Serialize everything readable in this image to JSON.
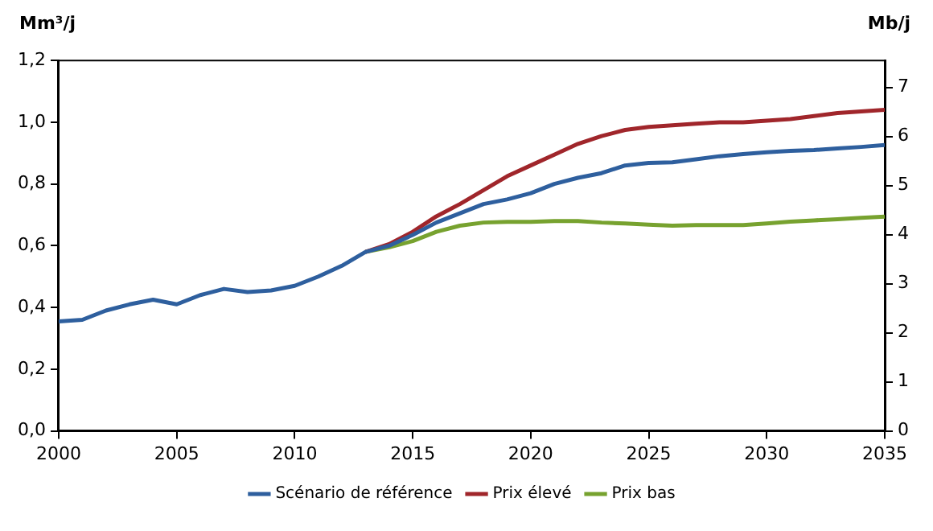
{
  "chart_data": {
    "type": "line",
    "ylabel": "Mm³/j",
    "y2label": "Mb/j",
    "legend": "bottom",
    "grid": false,
    "marker": "none",
    "line_style": "solid",
    "xlim": [
      2000,
      2035
    ],
    "xticks": [
      2000,
      2005,
      2010,
      2015,
      2020,
      2025,
      2030,
      2035
    ],
    "ylim": [
      0,
      1.2
    ],
    "yticks": [
      {
        "value": 0,
        "label": "0,0"
      },
      {
        "value": 0.2,
        "label": "0,2"
      },
      {
        "value": 0.4,
        "label": "0,4"
      },
      {
        "value": 0.6,
        "label": "0,6"
      },
      {
        "value": 0.8,
        "label": "0,8"
      },
      {
        "value": 1,
        "label": "1,0"
      },
      {
        "value": 1.2,
        "label": "1,2"
      }
    ],
    "y2lim": [
      0,
      7.55
    ],
    "y2ticks": [
      0,
      1,
      2,
      3,
      4,
      5,
      6,
      7
    ],
    "series": [
      {
        "name": "Scénario de référence",
        "color": "#2e5f9e",
        "x": [
          2000,
          2001,
          2002,
          2003,
          2004,
          2005,
          2006,
          2007,
          2008,
          2009,
          2010,
          2011,
          2012,
          2013,
          2014,
          2015,
          2016,
          2017,
          2018,
          2019,
          2020,
          2021,
          2022,
          2023,
          2024,
          2025,
          2026,
          2027,
          2028,
          2029,
          2030,
          2031,
          2032,
          2033,
          2034,
          2035
        ],
        "values": [
          0.355,
          0.36,
          0.39,
          0.41,
          0.425,
          0.41,
          0.44,
          0.46,
          0.45,
          0.455,
          0.47,
          0.5,
          0.535,
          0.58,
          0.6,
          0.635,
          0.675,
          0.705,
          0.735,
          0.75,
          0.77,
          0.8,
          0.82,
          0.835,
          0.86,
          0.868,
          0.87,
          0.88,
          0.89,
          0.897,
          0.903,
          0.907,
          0.91,
          0.915,
          0.92,
          0.926
        ]
      },
      {
        "name": "Prix élevé",
        "color": "#a0262b",
        "x": [
          2013,
          2014,
          2015,
          2016,
          2017,
          2018,
          2019,
          2020,
          2021,
          2022,
          2023,
          2024,
          2025,
          2026,
          2027,
          2028,
          2029,
          2030,
          2031,
          2032,
          2033,
          2034,
          2035
        ],
        "values": [
          0.58,
          0.605,
          0.645,
          0.695,
          0.735,
          0.78,
          0.825,
          0.86,
          0.895,
          0.93,
          0.955,
          0.975,
          0.985,
          0.99,
          0.995,
          1.0,
          1.0,
          1.005,
          1.01,
          1.02,
          1.03,
          1.035,
          1.04
        ]
      },
      {
        "name": "Prix bas",
        "color": "#77a22f",
        "x": [
          2013,
          2014,
          2015,
          2016,
          2017,
          2018,
          2019,
          2020,
          2021,
          2022,
          2023,
          2024,
          2025,
          2026,
          2027,
          2028,
          2029,
          2030,
          2031,
          2032,
          2033,
          2034,
          2035
        ],
        "values": [
          0.58,
          0.595,
          0.615,
          0.645,
          0.665,
          0.675,
          0.677,
          0.677,
          0.68,
          0.68,
          0.675,
          0.672,
          0.668,
          0.665,
          0.667,
          0.667,
          0.667,
          0.672,
          0.678,
          0.682,
          0.686,
          0.69,
          0.694
        ]
      }
    ]
  }
}
